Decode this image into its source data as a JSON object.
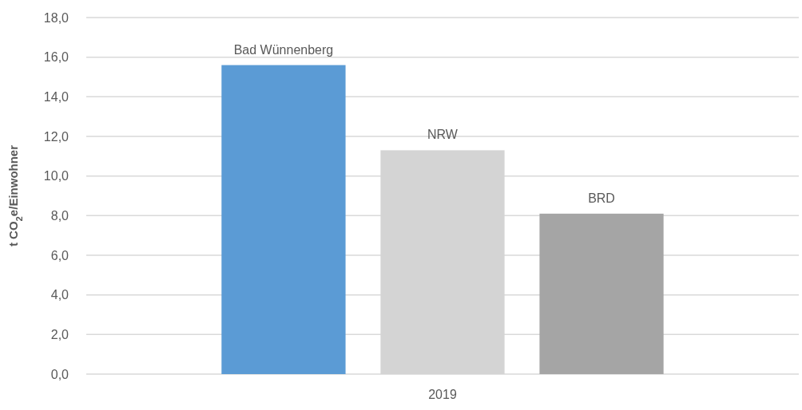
{
  "chart_data": {
    "type": "bar",
    "ylabel": "t CO$_{2}$e/Einwohner",
    "categories": [
      "2019"
    ],
    "series": [
      {
        "name": "Bad Wünnenberg",
        "color": "#5b9bd5",
        "values": [
          15.6
        ]
      },
      {
        "name": "NRW",
        "color": "#d4d4d4",
        "values": [
          11.3
        ]
      },
      {
        "name": "BRD",
        "color": "#a5a5a5",
        "values": [
          8.1
        ]
      }
    ],
    "ylim": [
      0,
      18
    ],
    "yticks": [
      {
        "value": 0,
        "label": "0,0"
      },
      {
        "value": 2,
        "label": "2,0"
      },
      {
        "value": 4,
        "label": "4,0"
      },
      {
        "value": 6,
        "label": "6,0"
      },
      {
        "value": 8,
        "label": "8,0"
      },
      {
        "value": 10,
        "label": "10,0"
      },
      {
        "value": 12,
        "label": "12,0"
      },
      {
        "value": 14,
        "label": "14,0"
      },
      {
        "value": 16,
        "label": "16,0"
      },
      {
        "value": 18,
        "label": "18,0"
      }
    ],
    "grid": true
  }
}
